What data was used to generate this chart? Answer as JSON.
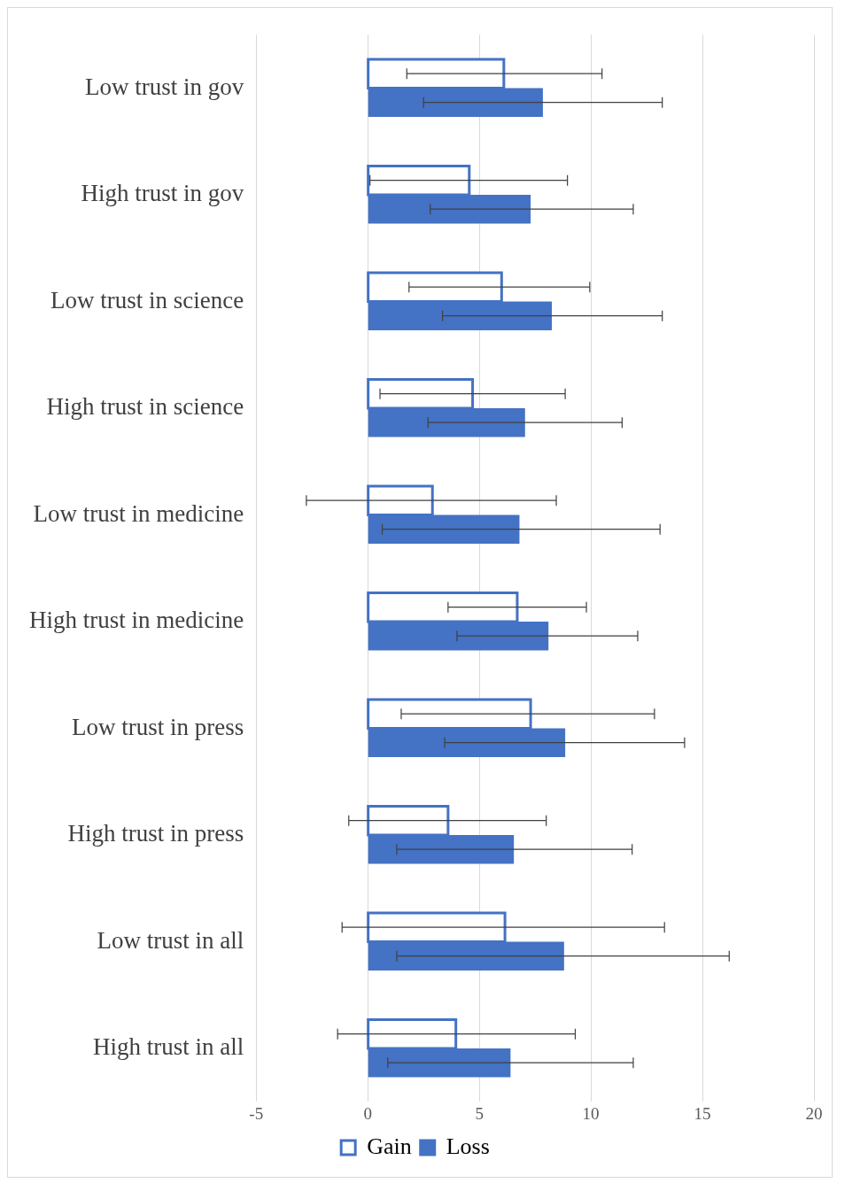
{
  "chart_data": {
    "type": "bar",
    "orientation": "horizontal",
    "categories": [
      "Low trust in gov",
      "High trust in gov",
      "Low trust in science",
      "High trust in science",
      "Low trust in medicine",
      "High trust in medicine",
      "Low trust in press",
      "High trust in press",
      "Low trust in all",
      "High trust in all"
    ],
    "series": [
      {
        "name": "Gain",
        "color": "#4472c4",
        "values": [
          6.1,
          4.55,
          6.0,
          4.7,
          2.9,
          6.7,
          7.3,
          3.6,
          6.15,
          3.95
        ],
        "errors": [
          [
            1.75,
            10.5
          ],
          [
            0.1,
            8.95
          ],
          [
            1.85,
            9.95
          ],
          [
            0.55,
            8.85
          ],
          [
            -2.75,
            8.45
          ],
          [
            3.6,
            9.8
          ],
          [
            1.5,
            12.85
          ],
          [
            -0.85,
            8.0
          ],
          [
            -1.15,
            13.3
          ],
          [
            -1.35,
            9.3
          ]
        ]
      },
      {
        "name": "Loss",
        "color": "#4472c4",
        "values": [
          7.85,
          7.3,
          8.25,
          7.05,
          6.8,
          8.1,
          8.85,
          6.55,
          8.8,
          6.4
        ],
        "errors": [
          [
            2.5,
            13.2
          ],
          [
            2.8,
            11.9
          ],
          [
            3.35,
            13.2
          ],
          [
            2.7,
            11.4
          ],
          [
            0.65,
            13.1
          ],
          [
            4.0,
            12.1
          ],
          [
            3.45,
            14.2
          ],
          [
            1.3,
            11.85
          ],
          [
            1.3,
            16.2
          ],
          [
            0.9,
            11.9
          ]
        ]
      }
    ],
    "xlim": [
      -5,
      20
    ],
    "xticks": [
      -5,
      0,
      5,
      10,
      15,
      20
    ],
    "grid": "x",
    "legend": "bottom"
  }
}
